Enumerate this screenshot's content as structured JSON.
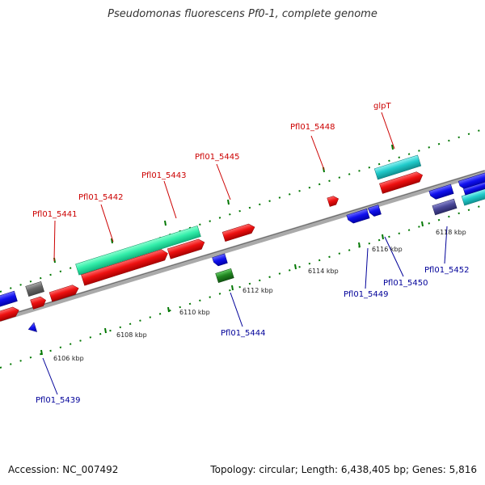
{
  "title": "Pseudomonas fluorescens Pf0-1, complete genome",
  "footer": {
    "accession": "Accession: NC_007492",
    "summary": "Topology: circular; Length: 6,438,405 bp; Genes: 5,816"
  },
  "colors": {
    "forward_label": "#cc0000",
    "reverse_label": "#000099",
    "forward_tick": "#007700",
    "reverse_tick": "#007700",
    "backbone": "#999999"
  },
  "forward_labels": [
    "Pfl01_5441",
    "Pfl01_5442",
    "Pfl01_5443",
    "Pfl01_5445",
    "Pfl01_5448",
    "glpT"
  ],
  "reverse_labels": [
    "Pfl01_5439",
    "Pfl01_5444",
    "Pfl01_5449",
    "Pfl01_5450",
    "Pfl01_5452"
  ],
  "ruler_labels": [
    "6106 kbp",
    "6108 kbp",
    "6110 kbp",
    "6112 kbp",
    "6114 kbp",
    "6116 kbp",
    "6118 kbp"
  ]
}
